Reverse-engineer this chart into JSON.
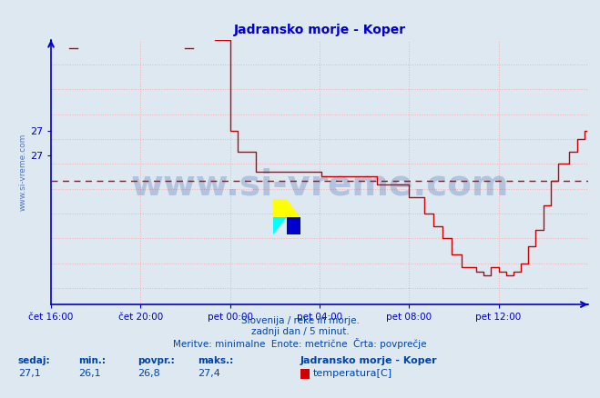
{
  "title": "Jadransko morje - Koper",
  "bg_color": "#dde8f0",
  "plot_bg_color": "#dde8f0",
  "line_color": "#cc0000",
  "avg_line_color": "#cc0000",
  "grid_color": "#ffaaaa",
  "axis_color": "#0000cc",
  "title_color": "#0000cc",
  "x_labels": [
    "čet 16:00",
    "čet 20:00",
    "pet 00:00",
    "pet 04:00",
    "pet 08:00",
    "pet 12:00"
  ],
  "x_tick_positions": [
    0,
    48,
    96,
    144,
    192,
    240
  ],
  "ylim_min": 25.3,
  "ylim_max": 28.5,
  "xlim_min": 0,
  "xlim_max": 288,
  "avg_value": 26.8,
  "ytick_vals": [
    27.4,
    27.1
  ],
  "ytick_labels": [
    "27",
    "27"
  ],
  "y_grid_vals": [
    25.5,
    25.8,
    26.1,
    26.4,
    26.7,
    27.0,
    27.3,
    27.6,
    27.9,
    28.2
  ],
  "footer_line1": "Slovenija / reke in morje.",
  "footer_line2": "zadnji dan / 5 minut.",
  "footer_line3": "Meritve: minimalne  Enote: metrične  Črta: povprečje",
  "legend_station": "Jadransko morje - Koper",
  "legend_label": "temperatura[C]",
  "legend_color": "#cc0000",
  "sedaj": "27,1",
  "min_val": "26,1",
  "povpr": "26,8",
  "maks": "27,4",
  "text_color": "#0044aa",
  "watermark_color": "#3355aa"
}
